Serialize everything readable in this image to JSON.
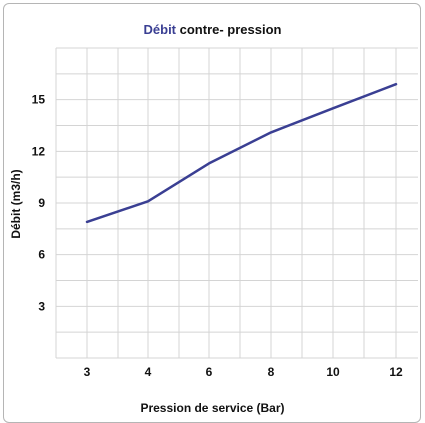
{
  "chart_data": {
    "type": "line",
    "title_part1": "Débit",
    "title_part2": " contre- pression",
    "xlabel": "Pression de service (Bar)",
    "ylabel": "Débit (m3/h)",
    "x": [
      3,
      4,
      6,
      8,
      10,
      12
    ],
    "series": [
      {
        "values": [
          7.9,
          9.1,
          11.3,
          13.1,
          14.5,
          15.9
        ]
      }
    ],
    "x_ticks": [
      "3",
      "4",
      "6",
      "8",
      "10",
      "12"
    ],
    "y_ticks": [
      3,
      6,
      9,
      12,
      15
    ],
    "y_tick_labels": [
      "3",
      "6",
      "9",
      "12",
      "15"
    ],
    "ylim": [
      0,
      18
    ],
    "grid": true,
    "line_color": "#3a3f93",
    "grid_color": "#d4d4d4"
  }
}
